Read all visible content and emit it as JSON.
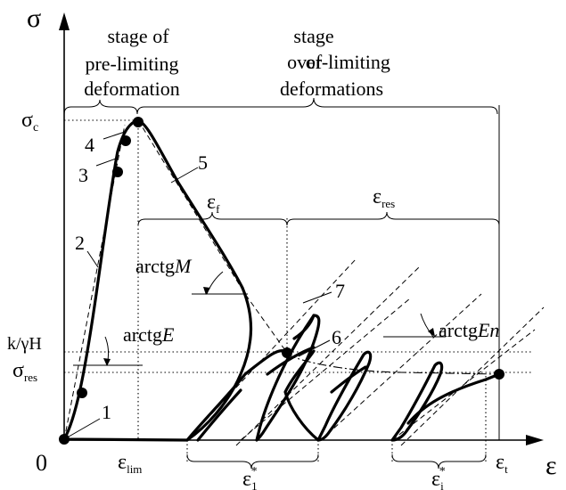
{
  "axes": {
    "y_label": "σ",
    "x_label": "ε",
    "origin": "0"
  },
  "stage_labels": {
    "pre_limiting": [
      "stage of",
      "pre-limiting",
      "deformation"
    ],
    "over_limiting": [
      "stage",
      "of",
      "over-limiting",
      "deformations"
    ]
  },
  "y_ticks": {
    "sigma_c": {
      "base": "σ",
      "sub": "c"
    },
    "k_gamma_h": "k/γH",
    "sigma_res": {
      "base": "σ",
      "sub": "res"
    }
  },
  "x_ticks": {
    "eps_lim": {
      "base": "ε",
      "sub": "lim"
    },
    "eps_1": {
      "base": "ε",
      "sub": "1",
      "sup": "*"
    },
    "eps_i": {
      "base": "ε",
      "sub": "i",
      "sup": "*"
    },
    "eps_t": {
      "base": "ε",
      "sub": "t"
    }
  },
  "span_labels": {
    "eps_f": {
      "base": "ε",
      "sub": "f"
    },
    "eps_res": {
      "base": "ε",
      "sub": "res"
    }
  },
  "slope_labels": {
    "arctg_E": {
      "prefix": "arctg",
      "var": "E"
    },
    "arctg_M": {
      "prefix": "arctg",
      "var": "M"
    },
    "arctg_En": {
      "prefix": "arctg",
      "var": "En"
    }
  },
  "point_numbers": [
    "1",
    "2",
    "3",
    "4",
    "5",
    "6",
    "7"
  ]
}
